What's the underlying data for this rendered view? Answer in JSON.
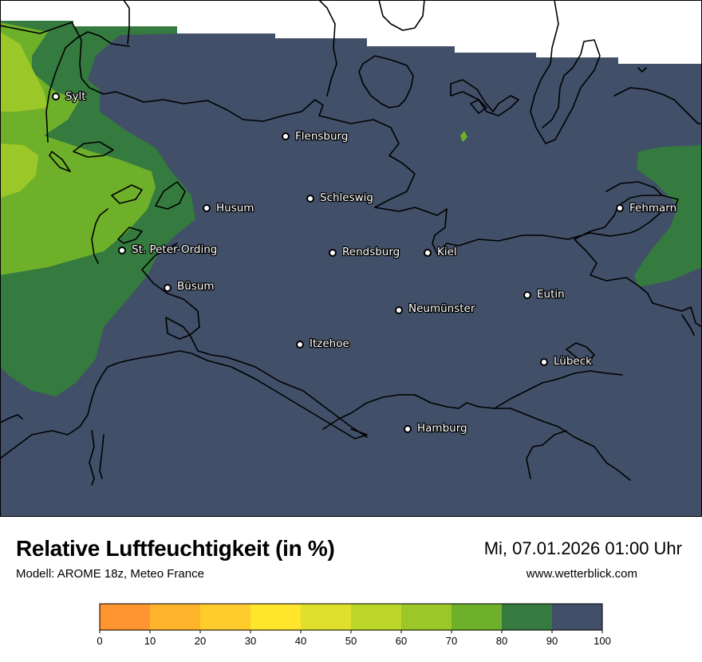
{
  "map": {
    "cities": [
      {
        "name": "Sylt"
      },
      {
        "name": "Flensburg"
      },
      {
        "name": "Schleswig"
      },
      {
        "name": "Husum"
      },
      {
        "name": "Fehmarn"
      },
      {
        "name": "St. Peter-Ording"
      },
      {
        "name": "Rendsburg"
      },
      {
        "name": "Kiel"
      },
      {
        "name": "Büsum"
      },
      {
        "name": "Eutin"
      },
      {
        "name": "Neumünster"
      },
      {
        "name": "Itzehoe"
      },
      {
        "name": "Lübeck"
      },
      {
        "name": "Hamburg"
      }
    ],
    "colors": {
      "land_90_100": "#414f68",
      "band_80_90": "#357a3e",
      "band_70_80": "#6fb02a",
      "band_60_70": "#9cc728",
      "coastline": "#000000"
    }
  },
  "footer": {
    "title": "Relative Luftfeuchtigkeit (in %)",
    "subtitle": "Modell: AROME 18z, Meteo France",
    "datetime": "Mi, 07.01.2026 01:00 Uhr",
    "website": "www.wetterblick.com"
  },
  "legend": {
    "ticks": [
      "0",
      "10",
      "20",
      "30",
      "40",
      "50",
      "60",
      "70",
      "80",
      "90",
      "100"
    ],
    "colors": [
      "#ff9530",
      "#ffb42c",
      "#ffcc2b",
      "#ffe52b",
      "#dfe02d",
      "#bcd62a",
      "#9cc728",
      "#6fb02a",
      "#357a3e",
      "#414f68"
    ]
  }
}
